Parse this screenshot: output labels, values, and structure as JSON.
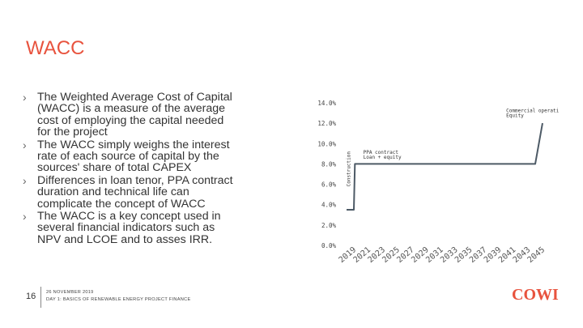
{
  "slide": {
    "title": "WACC",
    "page_number": "16",
    "footer_line1": "26 NOVEMBER 2019",
    "footer_line2": "DAY 1: BASICS OF RENEWABLE ENERGY PROJECT FINANCE",
    "logo_text": "COWI",
    "accent_color": "#e8533e"
  },
  "bullets": [
    {
      "lines": [
        "The Weighted Average Cost of Capital",
        "(WACC) is a measure of the average",
        "cost of employing the capital needed",
        "for the project"
      ]
    },
    {
      "lines": [
        "The WACC simply weighs the interest",
        "rate of each source of capital by the",
        "sources' share of total CAPEX"
      ]
    },
    {
      "lines": [
        "Differences in loan tenor, PPA contract",
        "duration and technical life can",
        "complicate the concept of WACC"
      ]
    },
    {
      "lines": [
        "The WACC is a key concept used in",
        "several financial indicators such as",
        "NPV and LCOE and to asses IRR."
      ]
    }
  ],
  "chart_data": {
    "type": "line",
    "ylim": [
      0,
      0.14
    ],
    "y_ticks": [
      "14.0%",
      "12.0%",
      "10.0%",
      "8.0%",
      "6.0%",
      "4.0%",
      "2.0%",
      "0.0%"
    ],
    "y_tick_values": [
      0.14,
      0.12,
      0.1,
      0.08,
      0.06,
      0.04,
      0.02,
      0.0
    ],
    "x_ticks": [
      "2019",
      "2021",
      "2023",
      "2025",
      "2027",
      "2029",
      "2031",
      "2033",
      "2035",
      "2037",
      "2039",
      "2041",
      "2043",
      "2045"
    ],
    "x_range": [
      2019,
      2046
    ],
    "series": [
      {
        "color": "#4d5a66",
        "x": [
          2019,
          2020,
          2020.15,
          2021,
          2045,
          2046
        ],
        "y": [
          0.035,
          0.035,
          0.08,
          0.08,
          0.08,
          0.12
        ]
      }
    ],
    "annotations": [
      {
        "text": "Construction",
        "x": 2019.5,
        "y": 0.075,
        "rotate": true
      },
      {
        "text": "PPA contract",
        "x": 2021.3,
        "y": 0.09
      },
      {
        "text": "Loan + equity",
        "x": 2021.3,
        "y": 0.085
      },
      {
        "text": "Commercial operation",
        "x": 2041.0,
        "y": 0.131
      },
      {
        "text": "Equity",
        "x": 2041.0,
        "y": 0.126
      }
    ]
  }
}
